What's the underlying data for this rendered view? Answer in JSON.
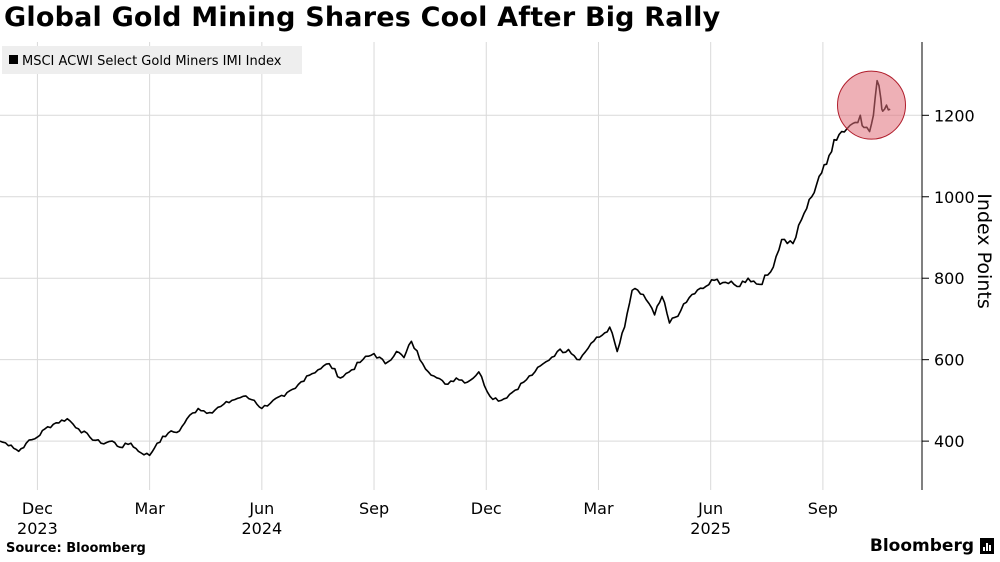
{
  "title": "Global Gold Mining Shares Cool After Big Rally",
  "source": "Source: Bloomberg",
  "brand": "Bloomberg",
  "colors": {
    "line": "#000000",
    "grid": "#d9d9d9",
    "highlight": "#e0707a",
    "highlight_stroke": "#b01e2c",
    "legend_bg": "#eeeeee"
  },
  "chart_data": {
    "type": "line",
    "title": "Global Gold Mining Shares Cool After Big Rally",
    "xlabel": "",
    "ylabel": "Index Points",
    "ylim": [
      280,
      1380
    ],
    "xlim": [
      0,
      24.65
    ],
    "grid": true,
    "legend_position": "top-left",
    "y_ticks": [
      400,
      600,
      800,
      1000,
      1200
    ],
    "x_ticks": [
      {
        "x": 1,
        "label": "Dec",
        "year": "2023"
      },
      {
        "x": 4,
        "label": "Mar",
        "year": ""
      },
      {
        "x": 7,
        "label": "Jun",
        "year": "2024"
      },
      {
        "x": 10,
        "label": "Sep",
        "year": ""
      },
      {
        "x": 13,
        "label": "Dec",
        "year": ""
      },
      {
        "x": 16,
        "label": "Mar",
        "year": ""
      },
      {
        "x": 19,
        "label": "Jun",
        "year": "2025"
      },
      {
        "x": 22,
        "label": "Sep",
        "year": ""
      }
    ],
    "series": [
      {
        "name": "MSCI ACWI Select Gold Miners IMI Index",
        "x": [
          0,
          0.3,
          0.5,
          0.7,
          1.0,
          1.2,
          1.5,
          1.8,
          2.1,
          2.4,
          2.7,
          3.0,
          3.2,
          3.5,
          3.7,
          4.0,
          4.2,
          4.5,
          4.8,
          5.0,
          5.3,
          5.6,
          5.9,
          6.2,
          6.5,
          6.8,
          7.0,
          7.3,
          7.6,
          7.9,
          8.2,
          8.5,
          8.8,
          9.1,
          9.4,
          9.7,
          10.0,
          10.3,
          10.6,
          10.8,
          11.0,
          11.3,
          11.6,
          11.9,
          12.2,
          12.5,
          12.8,
          13.1,
          13.4,
          13.7,
          14.0,
          14.3,
          14.6,
          14.9,
          15.2,
          15.5,
          15.8,
          16.1,
          16.3,
          16.5,
          16.7,
          16.9,
          17.2,
          17.5,
          17.7,
          17.9,
          18.2,
          18.5,
          18.8,
          19.1,
          19.4,
          19.7,
          20.0,
          20.3,
          20.6,
          20.9,
          21.2,
          21.5,
          21.7,
          21.9,
          22.1,
          22.3,
          22.5,
          22.8,
          23.0,
          23.1,
          23.25,
          23.35,
          23.45,
          23.55,
          23.6,
          23.7,
          23.8
        ],
        "values": [
          400,
          390,
          375,
          395,
          410,
          430,
          445,
          455,
          430,
          410,
          395,
          400,
          385,
          395,
          375,
          365,
          395,
          420,
          425,
          455,
          480,
          470,
          485,
          500,
          510,
          500,
          480,
          500,
          510,
          530,
          560,
          575,
          590,
          555,
          575,
          600,
          615,
          590,
          620,
          605,
          645,
          590,
          560,
          540,
          555,
          545,
          570,
          510,
          500,
          520,
          545,
          570,
          595,
          620,
          625,
          600,
          640,
          660,
          680,
          620,
          680,
          770,
          760,
          710,
          755,
          690,
          720,
          760,
          775,
          795,
          790,
          780,
          800,
          785,
          815,
          895,
          885,
          960,
          1000,
          1050,
          1080,
          1140,
          1160,
          1180,
          1200,
          1170,
          1160,
          1200,
          1285,
          1240,
          1210,
          1225,
          1215
        ]
      }
    ],
    "annotations": [
      {
        "type": "circle",
        "x": 23.3,
        "y": 1225,
        "label": ""
      }
    ]
  }
}
